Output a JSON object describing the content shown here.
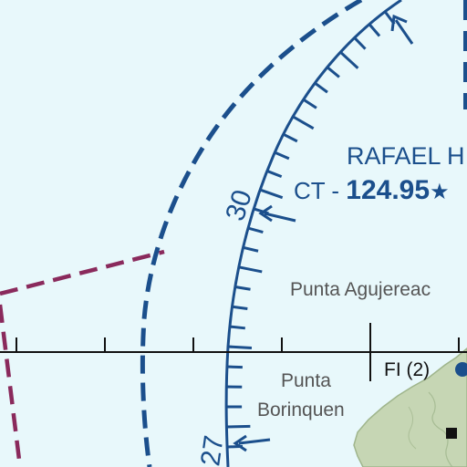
{
  "map": {
    "airport_name": "RAFAEL H",
    "tower_freq_prefix": "CT - ",
    "tower_freq": "124.95",
    "tower_freq_mark": "★",
    "radial_30": "30",
    "radial_27": "27",
    "point_1": "Punta Agujereac",
    "point_2_line1": "Punta",
    "point_2_line2": "Borinquen",
    "fix_label": "FI (2)"
  },
  "colors": {
    "water": "#e8f8fb",
    "airspace_blue": "#1b4f8c",
    "boundary_maroon": "#8a2a5c",
    "land": "#c6d6b4",
    "land_dark": "#9fb58c",
    "grid_line": "#111111",
    "label_gray": "#555555"
  }
}
